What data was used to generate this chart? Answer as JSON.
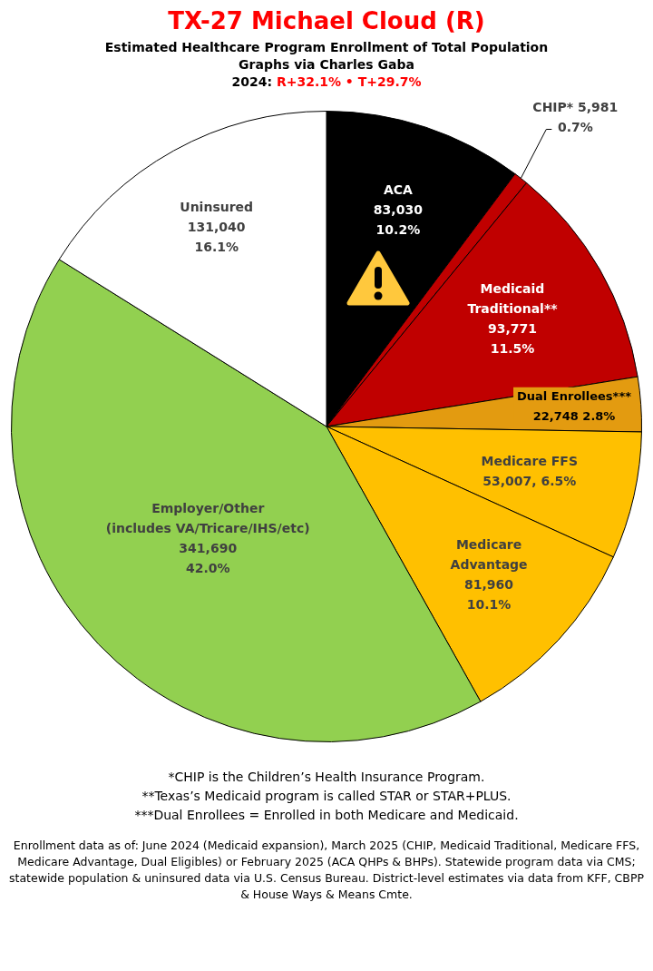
{
  "chart_data": {
    "type": "pie",
    "title": "TX-27 Michael Cloud (R)",
    "subtitle": "Estimated Healthcare Program Enrollment of Total Population",
    "categories": [
      "ACA",
      "CHIP*",
      "Medicaid\nTraditional**",
      "Dual Enrollees***",
      "Medicare FFS",
      "Medicare\nAdvantage",
      "Employer/Other\n(includes VA/Tricare/IHS/etc)",
      "Uninsured"
    ],
    "values": [
      83030,
      5981,
      93771,
      22748,
      53007,
      81960,
      341690,
      131040
    ],
    "colors": [
      "#000000",
      "#c00000",
      "#c00000",
      "#e39b10",
      "#ffc000",
      "#ffc000",
      "#92d050",
      "#ffffff"
    ],
    "value_labels": [
      "83,030\n10.2%",
      "5,981\n0.7%",
      "93,771\n11.5%",
      "22,748 2.8%",
      "53,007, 6.5%",
      "81,960\n10.1%",
      "341,690\n42.0%",
      "131,040\n16.1%"
    ],
    "legend": false,
    "annotations": [
      "Graphs via Charles Gaba",
      "2024: R+32.1% • T+29.7%",
      "*CHIP is the Children’s Health Insurance Program.",
      "**Texas’s Medicaid program is called STAR or STAR+PLUS.",
      "***Dual Enrollees = Enrolled in both Medicare and Medicaid.",
      "Enrollment data as of: June 2024 (Medicaid expansion), March 2025 (CHIP, Medicaid Traditional, Medicare FFS, Medicare Advantage, Dual Eligibles) or February 2025 (ACA QHPs & BHPs). Statewide program data via CMS; statewide population & uninsured data via U.S. Census Bureau. District-level estimates via data from KFF, CBPP & House Ways & Means Cmte."
    ]
  }
}
